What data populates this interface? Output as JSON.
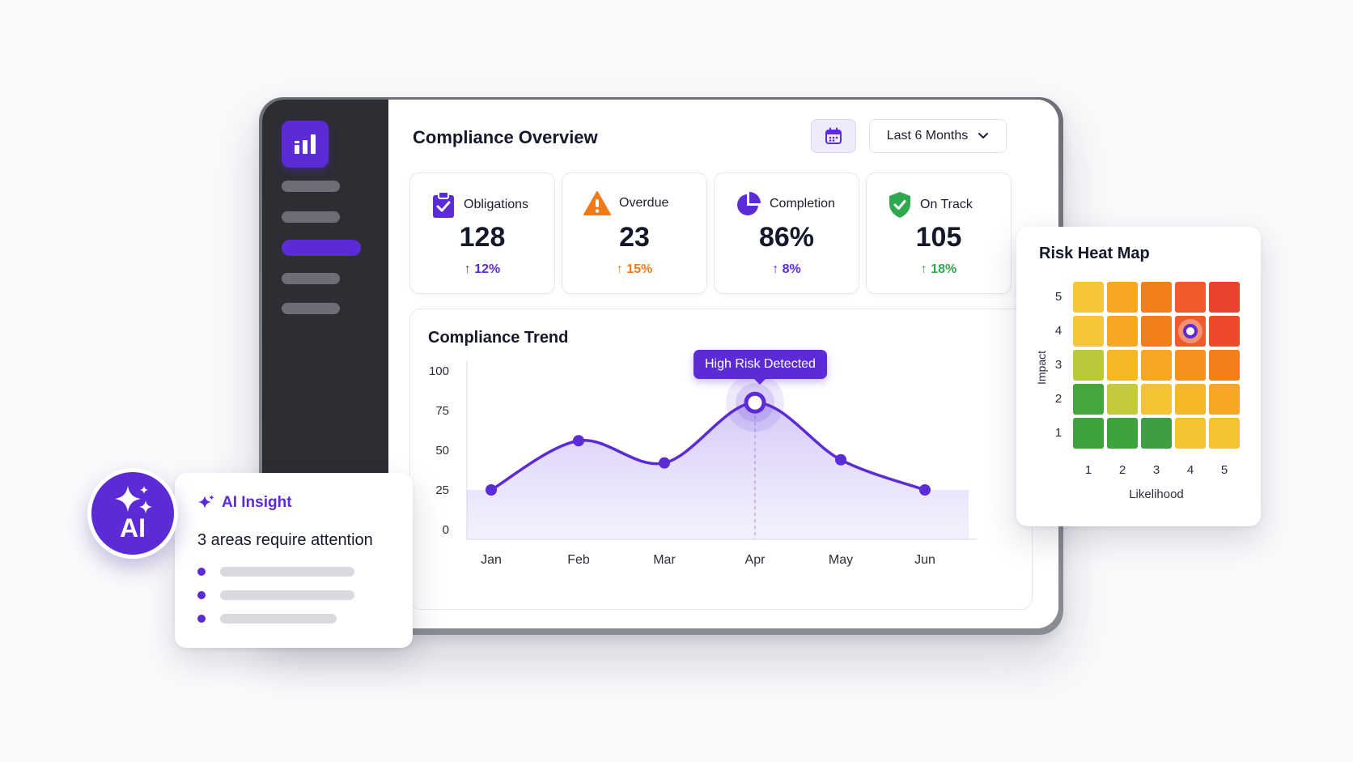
{
  "header": {
    "title": "Compliance Overview",
    "period_label": "Last 6 Months",
    "calendar_icon": "calendar-icon",
    "dropdown_icon": "chevron-down-icon"
  },
  "sidebar": {
    "logo_icon": "bar-chart-icon",
    "items": [
      {
        "state": "inactive"
      },
      {
        "state": "inactive"
      },
      {
        "state": "active"
      },
      {
        "state": "inactive"
      },
      {
        "state": "inactive"
      }
    ]
  },
  "kpis": [
    {
      "label": "Obligations",
      "value": "128",
      "delta": "12%",
      "direction": "up",
      "icon": "clipboard-check-icon",
      "color": "#5b2bd6"
    },
    {
      "label": "Overdue",
      "value": "23",
      "delta": "15%",
      "direction": "up",
      "icon": "warning-icon",
      "color": "#f07a17"
    },
    {
      "label": "Completion",
      "value": "86%",
      "delta": "8%",
      "direction": "up",
      "icon": "pie-icon",
      "color": "#5b2bd6"
    },
    {
      "label": "On Track",
      "value": "105",
      "delta": "18%",
      "direction": "up",
      "icon": "shield-check-icon",
      "color": "#2fa84f"
    }
  ],
  "trend": {
    "title": "Compliance Trend",
    "highlight_label": "High Risk Detected"
  },
  "chart_data": {
    "type": "area",
    "title": "Compliance Trend",
    "categories": [
      "Jan",
      "Feb",
      "Mar",
      "Apr",
      "May",
      "Jun"
    ],
    "series": [
      {
        "values": [
          25,
          56,
          42,
          80,
          44,
          25
        ]
      }
    ],
    "y_ticks": [
      "100",
      "75",
      "50",
      "25",
      "0"
    ],
    "ylim": [
      0,
      100
    ],
    "highlight": {
      "category": "Apr",
      "label": "High Risk Detected"
    },
    "color": "#5b2bd6"
  },
  "heatmap": {
    "title": "Risk Heat Map",
    "x_label": "Likelihood",
    "y_label": "Impact",
    "x_ticks": [
      "1",
      "2",
      "3",
      "4",
      "5"
    ],
    "y_ticks": [
      "5",
      "4",
      "3",
      "2",
      "1"
    ],
    "rows": [
      [
        "#f7c53a",
        "#f5a623",
        "#f37f1a",
        "#ef5a2a",
        "#e9432d"
      ],
      [
        "#f7c53a",
        "#f5a623",
        "#f37f1a",
        "#ef5a2a",
        "#ec4a2b"
      ],
      [
        "#b9c93a",
        "#f5b627",
        "#f5a623",
        "#f5921f",
        "#f37f1a"
      ],
      [
        "#45a83f",
        "#c3cb3a",
        "#f5c232",
        "#f5b627",
        "#f5a623"
      ],
      [
        "#3ea23d",
        "#3ea23d",
        "#3d9e44",
        "#f5c232",
        "#f5c232"
      ]
    ],
    "marker": {
      "row": 1,
      "col": 3
    }
  },
  "ai_insight": {
    "badge_text": "AI",
    "title": "AI Insight",
    "message": "3 areas require attention",
    "sparkle_icon": "sparkle-icon",
    "bullets": 3
  }
}
